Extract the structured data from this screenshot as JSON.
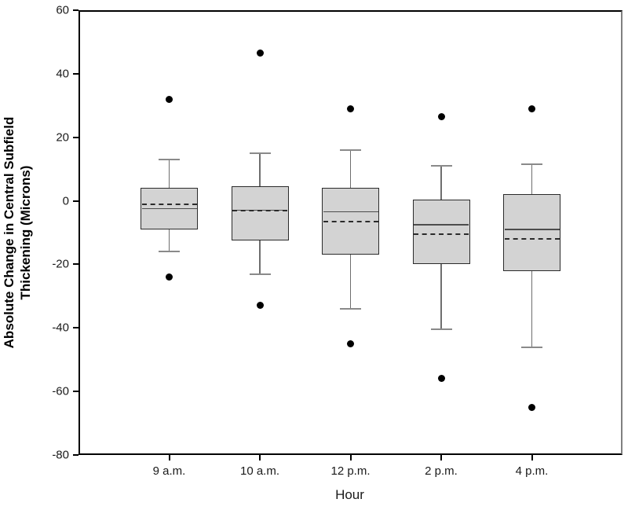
{
  "chart_data": {
    "type": "box",
    "title": "",
    "xlabel": "Hour",
    "ylabel_lines": [
      "Absolute Change in Central Subfield",
      "Thickening (Microns)"
    ],
    "ylim": [
      -80,
      60
    ],
    "yticks": [
      60,
      40,
      20,
      0,
      -20,
      -40,
      -60,
      -80
    ],
    "categories": [
      "9 a.m.",
      "10 a.m.",
      "12 p.m.",
      "2 p.m.",
      "4 p.m."
    ],
    "boxes": [
      {
        "category": "9 a.m.",
        "whisker_low": -16,
        "q1": -9,
        "median": -2.5,
        "mean": -1,
        "q3": 4,
        "whisker_high": 13,
        "outliers": [
          32,
          -24
        ]
      },
      {
        "category": "10 a.m.",
        "whisker_low": -23,
        "q1": -12.5,
        "median": -3,
        "mean": -3,
        "q3": 4.5,
        "whisker_high": 15,
        "outliers": [
          46.5,
          -33
        ]
      },
      {
        "category": "12 p.m.",
        "whisker_low": -34,
        "q1": -17,
        "median": -3.5,
        "mean": -6.5,
        "q3": 4,
        "whisker_high": 16,
        "outliers": [
          29,
          -45
        ]
      },
      {
        "category": "2 p.m.",
        "whisker_low": -40.5,
        "q1": -20,
        "median": -7.5,
        "mean": -10.5,
        "q3": 0.5,
        "whisker_high": 11,
        "outliers": [
          26.5,
          -56
        ]
      },
      {
        "category": "4 p.m.",
        "whisker_low": -46,
        "q1": -22,
        "median": -9,
        "mean": -12,
        "q3": 2,
        "whisker_high": 11.5,
        "outliers": [
          29,
          -65
        ]
      }
    ],
    "legend": null,
    "grid": false,
    "style": {
      "box_fill": "#d3d3d3",
      "box_border": "#2b2b2b",
      "median_color": "#4d4d4d",
      "mean_color": "#2b2b2b",
      "whisker_color": "#6e6e6e",
      "cap_color": "#8a8a8a",
      "outlier_color": "#000000",
      "frame_color": "#000000",
      "right_frame_color": "#808080",
      "background": "#ffffff"
    }
  }
}
